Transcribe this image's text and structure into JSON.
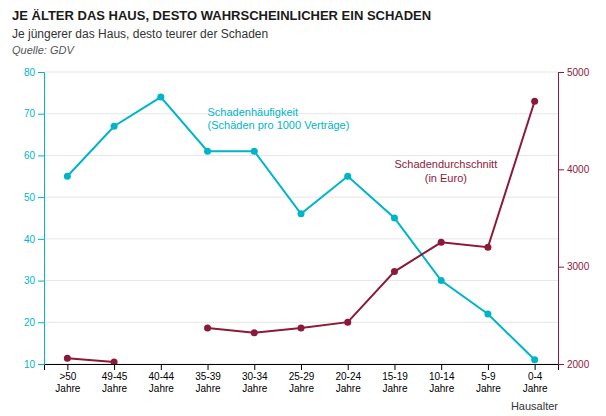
{
  "chart_data": {
    "type": "line",
    "title": "JE ÄLTER DAS HAUS, DESTO WAHRSCHEINLICHER EIN SCHADEN",
    "subtitle": "Je jüngerer das Haus, desto teurer der Schaden",
    "source": "Quelle: GDV",
    "xlabel": "Hausalter",
    "categories": [
      ">50\nJahre",
      "49-45\nJahre",
      "40-44\nJahre",
      "35-39\nJahre",
      "30-34\nJahre",
      "25-29\nJahre",
      "20-24\nJahre",
      "15-19\nJahre",
      "10-14\nJahre",
      "5-9\nJahre",
      "0-4\nJahre"
    ],
    "series": [
      {
        "name": "Schadenhäufigkeit\n(Schäden pro 1000 Verträge)",
        "color": "#00B5C8",
        "marker": "circle",
        "values": [
          55,
          67,
          74,
          61,
          61,
          46,
          55,
          45,
          30,
          22,
          11
        ]
      },
      {
        "name": "Schadendurchschnitt\n(in Euro)",
        "color": "#8B1A3A",
        "marker": "circle",
        "axis": "y2",
        "values": [
          2060,
          2020,
          null,
          2370,
          2320,
          2370,
          2430,
          2950,
          3250,
          3200,
          4700
        ]
      }
    ],
    "ylim": [
      10,
      80
    ],
    "yticks": [
      10,
      20,
      30,
      40,
      50,
      60,
      70,
      80
    ],
    "y2lim": [
      2000,
      5000
    ],
    "y2ticks": [
      2000,
      3000,
      4000,
      5000
    ],
    "grid": true
  }
}
